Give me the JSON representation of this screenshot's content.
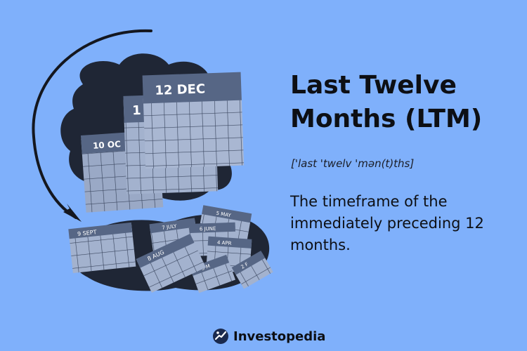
{
  "title_line1": "Last Twelve",
  "title_line2": "Months (LTM)",
  "pronunciation": "['last 'twelv 'mən(t)ths]",
  "definition": "The timeframe of the immediately preceding 12 months.",
  "brand": {
    "name": "Investopedia",
    "icon": "investopedia-logo-icon"
  },
  "calendars": {
    "front": "12 DEC",
    "middle": "1",
    "back": "10 OC",
    "pile": [
      "9 SEPT",
      "7 JULY",
      "6 JUNE",
      "5 MAY",
      "4 APR",
      "8 AUG",
      "3 M",
      "2 F"
    ]
  },
  "colors": {
    "background": "#7fb0fb",
    "shadow": "#1f2635",
    "calendar_page": "#9aa9c6",
    "calendar_header": "#566685",
    "text": "#0d0f14"
  }
}
